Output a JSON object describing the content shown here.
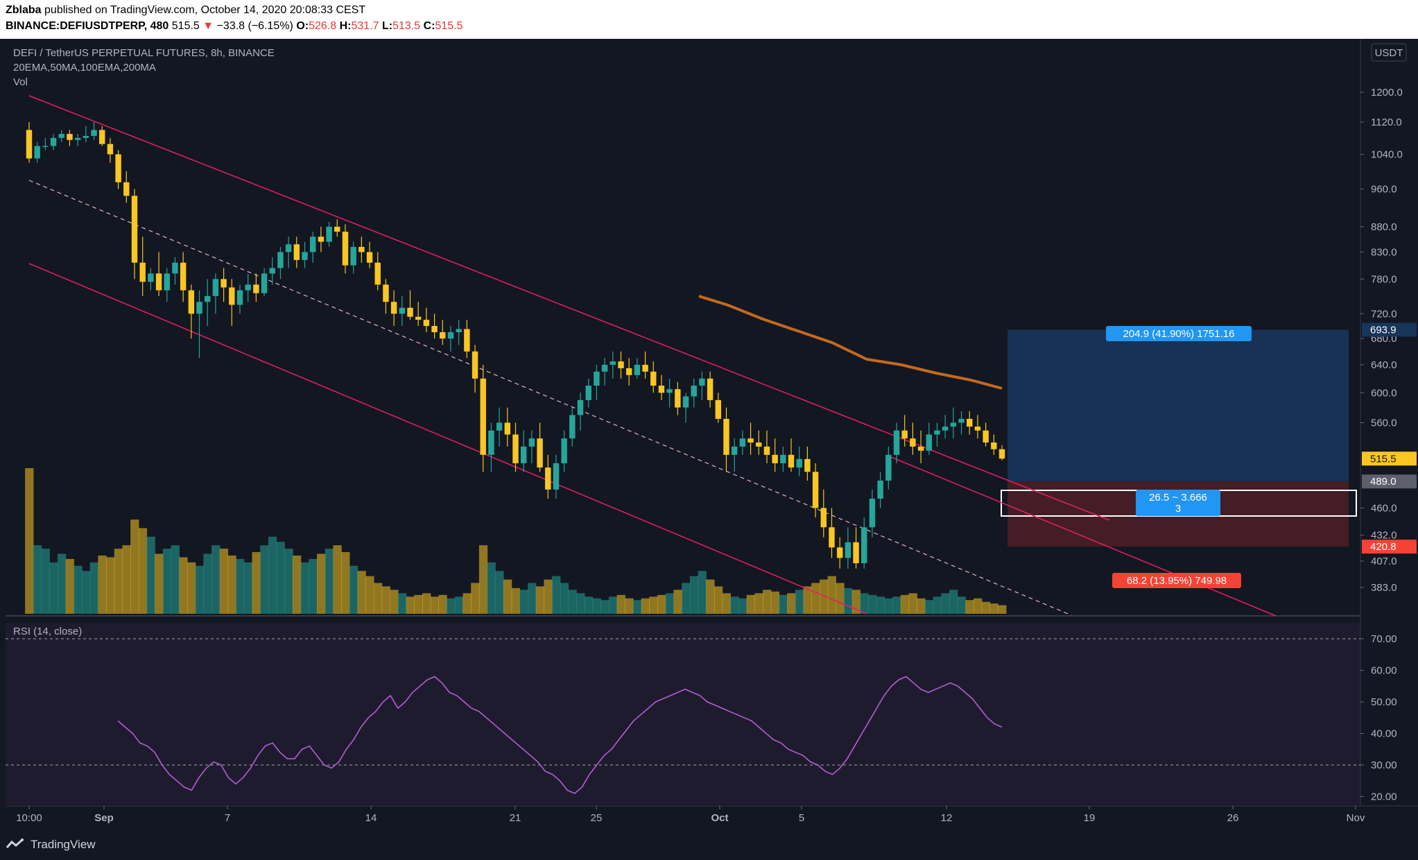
{
  "header": {
    "author": "Zblaba",
    "published": "published on TradingView.com, October 14, 2020 20:08:33 CEST",
    "symbol": "BINANCE:DEFIUSDTPERP,",
    "interval": "480",
    "last": "515.5",
    "change": "−33.8 (−6.15%)",
    "o_label": "O:",
    "o_val": "526.8",
    "h_label": "H:",
    "h_val": "531.7",
    "l_label": "L:",
    "l_val": "513.5",
    "c_label": "C:",
    "c_val": "515.5"
  },
  "legend": {
    "title": "DEFI / TetherUS PERPETUAL FUTURES, 8h, BINANCE",
    "indicators": "20EMA,50MA,100EMA,200MA",
    "vol": "Vol",
    "rsi": "RSI (14, close)"
  },
  "footer": {
    "brand": "TradingView"
  },
  "colors": {
    "bg": "#131722",
    "up": "#26a69a",
    "down": "#f9c623",
    "channel": "#e91e63",
    "ma": "#c56a1e",
    "rsi": "#b45ed6",
    "profit": "#18355a",
    "loss": "#4a1e27",
    "label_blue": "#2196f3",
    "label_red": "#f44336"
  },
  "chart_data": {
    "type": "candlestick",
    "currency": "USDT",
    "price_ticks": [
      "1200.0",
      "1120.0",
      "1040.0",
      "960.0",
      "880.0",
      "830.0",
      "780.0",
      "720.0",
      "680.0",
      "640.0",
      "600.0",
      "560.0",
      "460.0",
      "432.0",
      "407.0",
      "383.0"
    ],
    "rsi_ticks": [
      "70.00",
      "60.00",
      "50.00",
      "40.00",
      "30.00",
      "20.00"
    ],
    "rsi_bands": [
      70,
      30
    ],
    "x_ticks": [
      "10:00",
      "Sep",
      "7",
      "14",
      "21",
      "25",
      "Oct",
      "5",
      "12",
      "19",
      "26",
      "Nov"
    ],
    "price_labels": {
      "target": "693.9",
      "last": "515.5",
      "entry": "489.0",
      "stop": "420.8"
    },
    "position": {
      "profit_label": "204.9 (41.90%) 1751.16",
      "loss_label": "68.2 (13.95%) 749.98",
      "ratio_label": "26.5 ~ 3.666",
      "ratio_sub": "3",
      "target": 693.9,
      "entry": 489.0,
      "stop": 420.8
    },
    "ohlc": [
      [
        1100,
        1120,
        1020,
        1030
      ],
      [
        1030,
        1070,
        1020,
        1060
      ],
      [
        1060,
        1080,
        1050,
        1060
      ],
      [
        1060,
        1090,
        1050,
        1080
      ],
      [
        1080,
        1100,
        1070,
        1090
      ],
      [
        1090,
        1100,
        1060,
        1075
      ],
      [
        1075,
        1090,
        1060,
        1080
      ],
      [
        1080,
        1110,
        1070,
        1085
      ],
      [
        1085,
        1120,
        1075,
        1100
      ],
      [
        1100,
        1110,
        1060,
        1065
      ],
      [
        1065,
        1080,
        1020,
        1040
      ],
      [
        1040,
        1050,
        960,
        975
      ],
      [
        975,
        1000,
        930,
        945
      ],
      [
        945,
        960,
        780,
        810
      ],
      [
        810,
        860,
        750,
        775
      ],
      [
        775,
        800,
        760,
        790
      ],
      [
        790,
        830,
        750,
        760
      ],
      [
        760,
        800,
        740,
        790
      ],
      [
        790,
        820,
        770,
        810
      ],
      [
        810,
        830,
        740,
        760
      ],
      [
        760,
        770,
        680,
        720
      ],
      [
        720,
        760,
        650,
        740
      ],
      [
        740,
        780,
        700,
        750
      ],
      [
        750,
        790,
        720,
        780
      ],
      [
        780,
        800,
        740,
        765
      ],
      [
        765,
        780,
        700,
        735
      ],
      [
        735,
        770,
        720,
        760
      ],
      [
        760,
        790,
        740,
        770
      ],
      [
        770,
        790,
        740,
        755
      ],
      [
        755,
        800,
        750,
        790
      ],
      [
        790,
        820,
        770,
        800
      ],
      [
        800,
        840,
        780,
        830
      ],
      [
        830,
        860,
        800,
        845
      ],
      [
        845,
        860,
        800,
        815
      ],
      [
        815,
        850,
        800,
        830
      ],
      [
        830,
        870,
        810,
        860
      ],
      [
        860,
        880,
        830,
        850
      ],
      [
        850,
        890,
        840,
        880
      ],
      [
        880,
        895,
        860,
        870
      ],
      [
        870,
        885,
        790,
        805
      ],
      [
        805,
        850,
        790,
        840
      ],
      [
        840,
        860,
        810,
        830
      ],
      [
        830,
        850,
        800,
        810
      ],
      [
        810,
        830,
        760,
        770
      ],
      [
        770,
        780,
        720,
        740
      ],
      [
        740,
        760,
        700,
        720
      ],
      [
        720,
        750,
        700,
        730
      ],
      [
        730,
        760,
        710,
        715
      ],
      [
        715,
        740,
        700,
        710
      ],
      [
        710,
        730,
        690,
        700
      ],
      [
        700,
        720,
        680,
        690
      ],
      [
        690,
        710,
        670,
        680
      ],
      [
        680,
        700,
        660,
        690
      ],
      [
        690,
        710,
        670,
        695
      ],
      [
        695,
        710,
        650,
        660
      ],
      [
        660,
        670,
        600,
        620
      ],
      [
        620,
        640,
        500,
        520
      ],
      [
        520,
        560,
        500,
        550
      ],
      [
        550,
        580,
        530,
        560
      ],
      [
        560,
        580,
        530,
        545
      ],
      [
        545,
        560,
        500,
        510
      ],
      [
        510,
        550,
        500,
        530
      ],
      [
        530,
        550,
        510,
        540
      ],
      [
        540,
        560,
        500,
        505
      ],
      [
        505,
        520,
        470,
        480
      ],
      [
        480,
        520,
        470,
        510
      ],
      [
        510,
        550,
        500,
        540
      ],
      [
        540,
        580,
        530,
        570
      ],
      [
        570,
        600,
        550,
        590
      ],
      [
        590,
        620,
        580,
        610
      ],
      [
        610,
        640,
        590,
        630
      ],
      [
        630,
        650,
        610,
        640
      ],
      [
        640,
        660,
        620,
        645
      ],
      [
        645,
        660,
        620,
        635
      ],
      [
        635,
        650,
        610,
        625
      ],
      [
        625,
        650,
        620,
        640
      ],
      [
        640,
        660,
        620,
        630
      ],
      [
        630,
        645,
        600,
        610
      ],
      [
        610,
        625,
        590,
        600
      ],
      [
        600,
        620,
        580,
        605
      ],
      [
        605,
        615,
        570,
        580
      ],
      [
        580,
        600,
        560,
        595
      ],
      [
        595,
        620,
        580,
        610
      ],
      [
        610,
        630,
        590,
        620
      ],
      [
        620,
        630,
        580,
        590
      ],
      [
        590,
        600,
        560,
        565
      ],
      [
        565,
        580,
        500,
        520
      ],
      [
        520,
        540,
        500,
        530
      ],
      [
        530,
        550,
        520,
        540
      ],
      [
        540,
        560,
        520,
        535
      ],
      [
        535,
        550,
        520,
        530
      ],
      [
        530,
        550,
        510,
        520
      ],
      [
        520,
        540,
        500,
        510
      ],
      [
        510,
        530,
        500,
        520
      ],
      [
        520,
        540,
        500,
        505
      ],
      [
        505,
        530,
        495,
        515
      ],
      [
        515,
        530,
        490,
        500
      ],
      [
        500,
        510,
        450,
        460
      ],
      [
        460,
        480,
        430,
        440
      ],
      [
        440,
        460,
        410,
        420
      ],
      [
        420,
        430,
        400,
        410
      ],
      [
        410,
        440,
        400,
        425
      ],
      [
        425,
        440,
        400,
        405
      ],
      [
        405,
        450,
        400,
        440
      ],
      [
        440,
        480,
        430,
        470
      ],
      [
        470,
        500,
        460,
        490
      ],
      [
        490,
        530,
        480,
        520
      ],
      [
        520,
        560,
        510,
        550
      ],
      [
        550,
        570,
        530,
        540
      ],
      [
        540,
        560,
        520,
        530
      ],
      [
        530,
        550,
        510,
        525
      ],
      [
        525,
        560,
        520,
        545
      ],
      [
        545,
        560,
        530,
        550
      ],
      [
        550,
        570,
        540,
        555
      ],
      [
        555,
        580,
        540,
        560
      ],
      [
        560,
        575,
        545,
        565
      ],
      [
        565,
        575,
        545,
        555
      ],
      [
        555,
        570,
        540,
        550
      ],
      [
        550,
        560,
        530,
        535
      ],
      [
        535,
        545,
        520,
        526.8
      ],
      [
        526.8,
        531.7,
        513.5,
        515.5
      ]
    ],
    "volume": [
      85,
      40,
      38,
      30,
      35,
      32,
      28,
      25,
      30,
      34,
      33,
      38,
      40,
      55,
      50,
      45,
      35,
      38,
      40,
      33,
      30,
      28,
      35,
      40,
      38,
      34,
      32,
      30,
      36,
      40,
      45,
      42,
      38,
      34,
      30,
      32,
      35,
      38,
      40,
      36,
      28,
      25,
      22,
      18,
      16,
      14,
      12,
      10,
      11,
      12,
      10,
      11,
      9,
      10,
      12,
      18,
      40,
      30,
      25,
      20,
      15,
      14,
      18,
      16,
      20,
      22,
      18,
      14,
      12,
      10,
      9,
      8,
      10,
      11,
      9,
      8,
      9,
      10,
      11,
      12,
      14,
      18,
      22,
      25,
      20,
      16,
      12,
      10,
      9,
      11,
      12,
      14,
      13,
      11,
      12,
      14,
      16,
      18,
      20,
      22,
      18,
      15,
      14,
      12,
      11,
      10,
      9,
      10,
      11,
      12,
      9,
      8,
      10,
      12,
      14,
      10,
      8,
      9,
      7,
      6,
      5
    ],
    "rsi": [
      44,
      42,
      40,
      37,
      36,
      34,
      30,
      27,
      25,
      23,
      22,
      26,
      29,
      31,
      30,
      26,
      24,
      26,
      29,
      33,
      36,
      37,
      34,
      32,
      32,
      35,
      36,
      33,
      30,
      29,
      31,
      35,
      38,
      42,
      45,
      47,
      50,
      52,
      48,
      50,
      53,
      55,
      57,
      58,
      56,
      53,
      52,
      50,
      48,
      47,
      45,
      43,
      41,
      39,
      37,
      35,
      33,
      31,
      28,
      27,
      25,
      22,
      21,
      23,
      27,
      30,
      33,
      35,
      38,
      41,
      44,
      46,
      48,
      50,
      51,
      52,
      53,
      54,
      53,
      52,
      50,
      49,
      48,
      47,
      46,
      45,
      44,
      42,
      40,
      38,
      37,
      35,
      34,
      33,
      31,
      30,
      28,
      27,
      29,
      32,
      36,
      40,
      44,
      48,
      52,
      55,
      57,
      58,
      56,
      54,
      53,
      54,
      55,
      56,
      55,
      53,
      51,
      48,
      45,
      43,
      42
    ]
  }
}
